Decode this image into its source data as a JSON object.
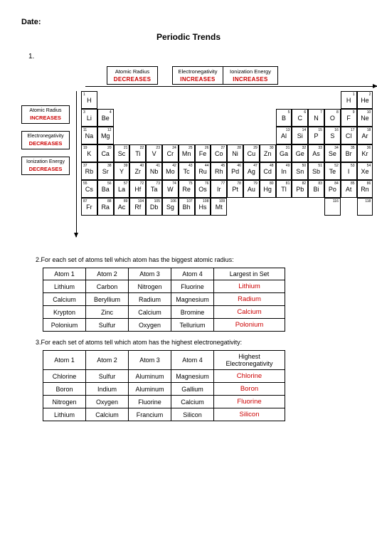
{
  "date_label": "Date:",
  "title": "Periodic Trends",
  "q1_num": "1.",
  "top_trends": [
    {
      "label": "Atomic Radius",
      "value": "DECREASES",
      "w": 72
    },
    {
      "label": "Electronegativity",
      "value": "INCREASES",
      "w": 72,
      "ml": 20
    },
    {
      "label": "Ionization Energy",
      "value": "INCREASES",
      "w": 78,
      "ml": -1
    }
  ],
  "left_trends": [
    {
      "label": "Atomic Radius",
      "value": "INCREASES"
    },
    {
      "label": "Electronegativity",
      "value": "DECREASES"
    },
    {
      "label": "Ionization Energy",
      "value": "DECREASES"
    }
  ],
  "ptable_rows": [
    [
      {
        "n": "1",
        "s": "H"
      },
      null,
      null,
      null,
      null,
      null,
      null,
      null,
      null,
      null,
      null,
      null,
      null,
      null,
      null,
      null,
      {
        "n": "1",
        "s": "H"
      },
      {
        "n": "2",
        "s": "He"
      }
    ],
    [
      {
        "n": "3",
        "s": "Li"
      },
      {
        "n": "4",
        "s": "Be"
      },
      null,
      null,
      null,
      null,
      null,
      null,
      null,
      null,
      null,
      null,
      {
        "n": "5",
        "s": "B"
      },
      {
        "n": "6",
        "s": "C"
      },
      {
        "n": "7",
        "s": "N"
      },
      {
        "n": "8",
        "s": "O"
      },
      {
        "n": "9",
        "s": "F"
      },
      {
        "n": "10",
        "s": "Ne"
      }
    ],
    [
      {
        "n": "11",
        "s": "Na"
      },
      {
        "n": "12",
        "s": "Mg"
      },
      null,
      null,
      null,
      null,
      null,
      null,
      null,
      null,
      null,
      null,
      {
        "n": "13",
        "s": "Al"
      },
      {
        "n": "14",
        "s": "Si"
      },
      {
        "n": "15",
        "s": "P"
      },
      {
        "n": "16",
        "s": "S"
      },
      {
        "n": "17",
        "s": "Cl"
      },
      {
        "n": "18",
        "s": "Ar"
      }
    ],
    [
      {
        "n": "19",
        "s": "K"
      },
      {
        "n": "20",
        "s": "Ca"
      },
      {
        "n": "21",
        "s": "Sc"
      },
      {
        "n": "22",
        "s": "Ti"
      },
      {
        "n": "23",
        "s": "V"
      },
      {
        "n": "24",
        "s": "Cr"
      },
      {
        "n": "25",
        "s": "Mn"
      },
      {
        "n": "26",
        "s": "Fe"
      },
      {
        "n": "27",
        "s": "Co"
      },
      {
        "n": "28",
        "s": "Ni"
      },
      {
        "n": "29",
        "s": "Cu"
      },
      {
        "n": "30",
        "s": "Zn"
      },
      {
        "n": "31",
        "s": "Ga"
      },
      {
        "n": "32",
        "s": "Ge"
      },
      {
        "n": "33",
        "s": "As"
      },
      {
        "n": "34",
        "s": "Se"
      },
      {
        "n": "35",
        "s": "Br"
      },
      {
        "n": "36",
        "s": "Kr"
      }
    ],
    [
      {
        "n": "37",
        "s": "Rb"
      },
      {
        "n": "38",
        "s": "Sr"
      },
      {
        "n": "39",
        "s": "Y"
      },
      {
        "n": "40",
        "s": "Zr"
      },
      {
        "n": "41",
        "s": "Nb"
      },
      {
        "n": "42",
        "s": "Mo"
      },
      {
        "n": "43",
        "s": "Tc"
      },
      {
        "n": "44",
        "s": "Ru"
      },
      {
        "n": "45",
        "s": "Rh"
      },
      {
        "n": "46",
        "s": "Pd"
      },
      {
        "n": "47",
        "s": "Ag"
      },
      {
        "n": "48",
        "s": "Cd"
      },
      {
        "n": "49",
        "s": "In"
      },
      {
        "n": "50",
        "s": "Sn"
      },
      {
        "n": "51",
        "s": "Sb"
      },
      {
        "n": "52",
        "s": "Te"
      },
      {
        "n": "53",
        "s": "I"
      },
      {
        "n": "54",
        "s": "Xe"
      }
    ],
    [
      {
        "n": "55",
        "s": "Cs"
      },
      {
        "n": "56",
        "s": "Ba"
      },
      {
        "n": "57",
        "s": "La"
      },
      {
        "n": "72",
        "s": "Hf"
      },
      {
        "n": "73",
        "s": "Ta"
      },
      {
        "n": "74",
        "s": "W"
      },
      {
        "n": "75",
        "s": "Re"
      },
      {
        "n": "76",
        "s": "Os"
      },
      {
        "n": "77",
        "s": "Ir"
      },
      {
        "n": "78",
        "s": "Pt"
      },
      {
        "n": "79",
        "s": "Au"
      },
      {
        "n": "80",
        "s": "Hg"
      },
      {
        "n": "81",
        "s": "Tl"
      },
      {
        "n": "82",
        "s": "Pb"
      },
      {
        "n": "83",
        "s": "Bi"
      },
      {
        "n": "84",
        "s": "Po"
      },
      {
        "n": "85",
        "s": "At"
      },
      {
        "n": "86",
        "s": "Rn"
      }
    ],
    [
      {
        "n": "87",
        "s": "Fr"
      },
      {
        "n": "88",
        "s": "Ra"
      },
      {
        "n": "89",
        "s": "Ac"
      },
      {
        "n": "104",
        "s": "Rf"
      },
      {
        "n": "105",
        "s": "Db"
      },
      {
        "n": "106",
        "s": "Sg"
      },
      {
        "n": "107",
        "s": "Bh"
      },
      {
        "n": "108",
        "s": "Hs"
      },
      {
        "n": "109",
        "s": "Mt"
      },
      null,
      null,
      null,
      null,
      null,
      null,
      {
        "n": "116",
        "s": ""
      },
      null,
      {
        "n": "118",
        "s": ""
      }
    ]
  ],
  "q2": {
    "text": "2.For each set of atoms tell which atom has the biggest atomic radius:",
    "headers": [
      "Atom 1",
      "Atom 2",
      "Atom 3",
      "Atom 4",
      "Largest in Set"
    ],
    "rows": [
      [
        "Lithium",
        "Carbon",
        "Nitrogen",
        "Fluorine",
        "Lithium"
      ],
      [
        "Calcium",
        "Beryllium",
        "Radium",
        "Magnesium",
        "Radium"
      ],
      [
        "Krypton",
        "Zinc",
        "Calcium",
        "Bromine",
        "Calcium"
      ],
      [
        "Polonium",
        "Sulfur",
        "Oxygen",
        "Tellurium",
        "Polonium"
      ]
    ]
  },
  "q3": {
    "text": "3.For each set of atoms tell which atom has the highest electronegativity:",
    "headers": [
      "Atom 1",
      "Atom 2",
      "Atom 3",
      "Atom 4",
      "Highest Electronegativity"
    ],
    "rows": [
      [
        "Chlorine",
        "Sulfur",
        "Aluminum",
        "Magnesium",
        "Chlorine"
      ],
      [
        "Boron",
        "Indium",
        "Aluminum",
        "Gallium",
        "Boron"
      ],
      [
        "Nitrogen",
        "Oxygen",
        "Fluorine",
        "Calcium",
        "Fluorine"
      ],
      [
        "Lithium",
        "Calcium",
        "Francium",
        "Silicon",
        "Silicon"
      ]
    ]
  }
}
